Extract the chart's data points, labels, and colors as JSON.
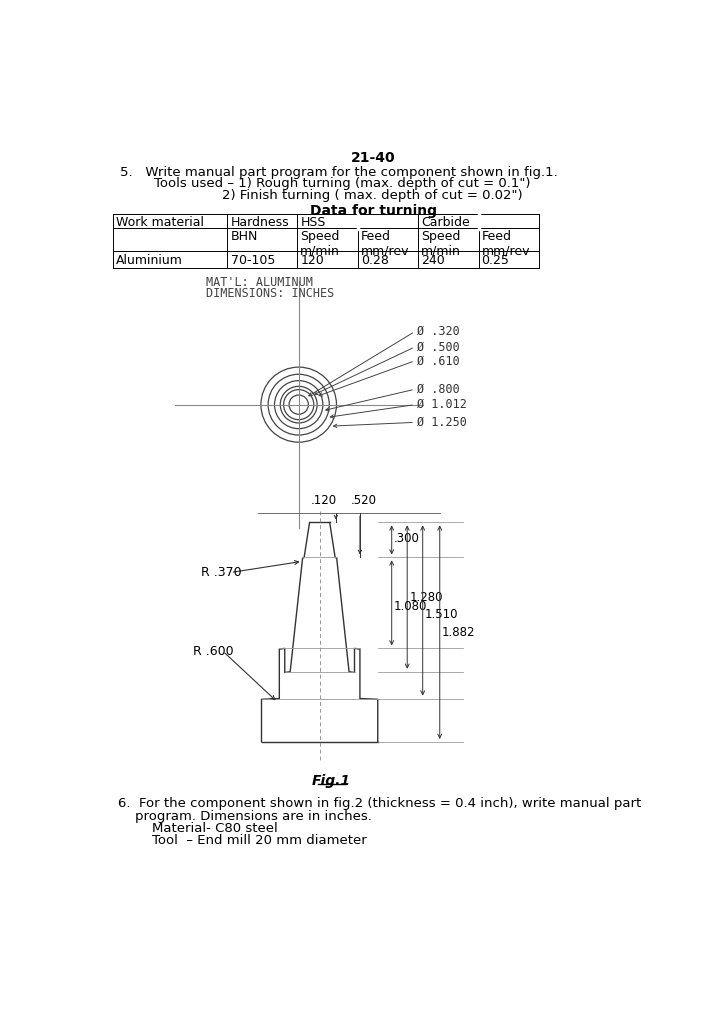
{
  "bg_color": "#ffffff",
  "title": "21-40",
  "line1": "5.   Write manual part program for the component shown in fig.1.",
  "line2": "        Tools used – 1) Rough turning (max. depth of cut = 0.1\")",
  "line3": "                        2) Finish turning ( max. depth of cut = 0.02\")",
  "table_title": "Data for turning",
  "table_row": [
    "Aluminium",
    "70-105",
    "120",
    "0.28",
    "240",
    "0.25"
  ],
  "mat_label1": "MAT'L: ALUMINUM",
  "mat_label2": "DIMENSIONS: INCHES",
  "circle_labels": [
    "Ø .320",
    "Ø .500",
    "Ø .610",
    "Ø .800",
    "Ø 1.012",
    "Ø 1.250"
  ],
  "circle_diameters": [
    0.32,
    0.5,
    0.61,
    0.8,
    1.012,
    1.25
  ],
  "dim_120": ".120",
  "dim_520": ".520",
  "dim_300": ".300",
  "dim_1080": "1.080",
  "dim_1280": "1.280",
  "dim_1510": "1.510",
  "dim_1882": "1.882",
  "r370": "R .370",
  "r600": "R .600",
  "fig_label": "Fig.1",
  "bottom_text1": "6.  For the component shown in fig.2 (thickness = 0.4 inch), write manual part",
  "bottom_text2": "    program. Dimensions are in inches.",
  "bottom_text3": "        Material- C80 steel",
  "bottom_text4": "        Tool  – End mill 20 mm diameter"
}
